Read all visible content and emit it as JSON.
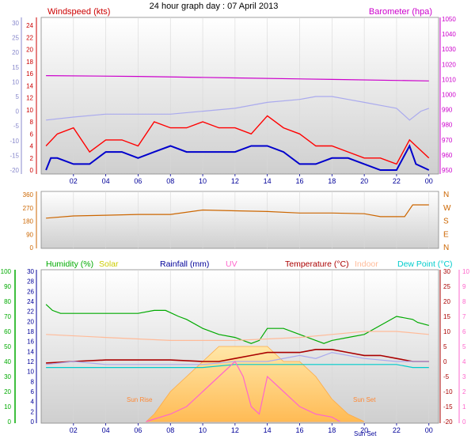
{
  "chart_data": [
    {
      "type": "line",
      "title": "24 hour graph day : 07 April 2013",
      "left_label": "Windspeed (kts)",
      "right_label": "Barometer (hpa)",
      "xticks": [
        "02",
        "04",
        "06",
        "08",
        "10",
        "12",
        "14",
        "16",
        "18",
        "20",
        "22",
        "00"
      ],
      "y_outer_ticks": [
        "30",
        "25",
        "20",
        "15",
        "10",
        "5",
        "0",
        "-5",
        "-10",
        "-15",
        "-20"
      ],
      "y_wind_ticks": [
        "24",
        "22",
        "20",
        "18",
        "16",
        "14",
        "12",
        "10",
        "8",
        "6",
        "4",
        "2",
        "0"
      ],
      "y_baro_ticks": [
        "1050",
        "1040",
        "1030",
        "1020",
        "1010",
        "1000",
        "990",
        "980",
        "970",
        "960",
        "950"
      ],
      "ylim_wind": [
        0,
        25
      ],
      "ylim_baro": [
        948,
        1052
      ],
      "ylim_outer": [
        -20,
        30
      ],
      "series": [
        {
          "name": "barometer",
          "axis": "baro",
          "color": "#cc00cc",
          "x": [
            0.3,
            6,
            12,
            18,
            24
          ],
          "y": [
            1012.5,
            1012,
            1011,
            1010,
            1009
          ]
        },
        {
          "name": "gust",
          "axis": "wind",
          "color": "#ff0000",
          "x": [
            0.3,
            1,
            2,
            3,
            4,
            5,
            6,
            7,
            8,
            9,
            10,
            11,
            12,
            13,
            14,
            15,
            16,
            17,
            18,
            19,
            20,
            21,
            22,
            22.8,
            23.2,
            24
          ],
          "y": [
            4,
            6,
            7,
            3,
            5,
            5,
            4,
            8,
            7,
            7,
            8,
            7,
            7,
            6,
            9,
            7,
            6,
            4,
            4,
            3,
            2,
            2,
            1,
            5,
            4,
            2
          ]
        },
        {
          "name": "wind",
          "axis": "wind",
          "color": "#0000cc",
          "x": [
            0.3,
            0.6,
            1,
            2,
            3,
            4,
            5,
            6,
            7,
            8,
            9,
            10,
            11,
            12,
            13,
            14,
            15,
            16,
            17,
            18,
            19,
            20,
            21,
            22,
            22.8,
            23.2,
            24
          ],
          "y": [
            0,
            2,
            2,
            1,
            1,
            3,
            3,
            2,
            3,
            4,
            3,
            3,
            3,
            3,
            4,
            4,
            3,
            1,
            1,
            2,
            2,
            1,
            0,
            0,
            4,
            1,
            0
          ],
          "xnote": "hours since 00:00"
        },
        {
          "name": "outer",
          "axis": "outer",
          "color": "#aaaaee",
          "x": [
            0.3,
            2,
            4,
            6,
            8,
            10,
            12,
            14,
            16,
            17,
            18,
            19,
            20,
            21,
            22,
            22.8,
            23.5,
            24
          ],
          "y": [
            -3,
            -2,
            -1,
            -1,
            -1,
            0,
            1,
            3,
            4,
            5,
            5,
            4,
            3,
            2,
            1,
            -3,
            0,
            1
          ]
        }
      ]
    },
    {
      "type": "line",
      "left_ticks": [
        "360",
        "270",
        "180",
        "90",
        "0"
      ],
      "right_ticks": [
        "N",
        "W",
        "S",
        "E",
        "N"
      ],
      "ylim": [
        0,
        360
      ],
      "series": [
        {
          "name": "direction",
          "color": "#cc6600",
          "x": [
            0.3,
            2,
            4,
            6,
            8,
            10,
            12,
            14,
            16,
            18,
            20,
            21,
            22,
            22.5,
            23,
            24
          ],
          "y": [
            200,
            215,
            220,
            225,
            225,
            255,
            250,
            245,
            235,
            235,
            230,
            210,
            210,
            210,
            290,
            290
          ]
        }
      ]
    },
    {
      "type": "line",
      "legend": [
        {
          "label": "Humidity (%)",
          "color": "#00aa00"
        },
        {
          "label": "Solar",
          "color": "#cccc00"
        },
        {
          "label": "Rainfall (mm)",
          "color": "#000099"
        },
        {
          "label": "UV",
          "color": "#ff66cc"
        },
        {
          "label": "Temperature (°C)",
          "color": "#aa0000"
        },
        {
          "label": "Indoor",
          "color": "#ffbb99"
        },
        {
          "label": "Dew Point (°C)",
          "color": "#00cccc"
        }
      ],
      "y_hum_ticks": [
        "100",
        "90",
        "80",
        "70",
        "60",
        "50",
        "40",
        "30",
        "20",
        "10",
        "0"
      ],
      "y_rain_ticks": [
        "30",
        "28",
        "26",
        "24",
        "22",
        "20",
        "18",
        "16",
        "14",
        "12",
        "10",
        "8",
        "6",
        "4",
        "2",
        "0"
      ],
      "y_temp_ticks": [
        "30",
        "25",
        "20",
        "15",
        "10",
        "5",
        "0",
        "-5",
        "-10",
        "-15",
        "-20"
      ],
      "y_uv_ticks": [
        "10",
        "9",
        "8",
        "7",
        "6",
        "5",
        "4",
        "3",
        "2",
        "1",
        "0"
      ],
      "annotations": {
        "sunrise": "Sun Rise",
        "sunset": "Sun Set",
        "sun_set_tick": "Sun Set"
      },
      "ylim_temp": [
        -20,
        30
      ],
      "series": [
        {
          "name": "humidity",
          "axis": "temp",
          "color": "#00aa00",
          "x": [
            0.3,
            0.7,
            1.2,
            2,
            4,
            6,
            7,
            7.7,
            8.5,
            9,
            10,
            11,
            12,
            12.5,
            13,
            13.5,
            14,
            15,
            16,
            17,
            17.5,
            18,
            19,
            20,
            21,
            22,
            23,
            23.3,
            24
          ],
          "y": [
            19,
            17,
            16,
            16,
            16,
            16,
            17,
            17,
            15,
            14,
            11,
            9,
            8,
            7,
            6,
            7,
            11,
            11,
            9,
            7,
            6,
            7,
            8,
            9,
            12,
            15,
            14,
            13,
            12
          ]
        },
        {
          "name": "indoor",
          "axis": "temp",
          "color": "#ffbb99",
          "x": [
            0.3,
            4,
            8,
            12,
            16,
            18,
            20,
            22,
            24
          ],
          "y": [
            9,
            8,
            7,
            7,
            8,
            9,
            10,
            10,
            9
          ]
        },
        {
          "name": "temperature",
          "axis": "temp",
          "color": "#aa0000",
          "x": [
            0.3,
            2,
            4,
            6,
            8,
            10,
            11,
            12,
            13,
            14,
            15,
            16,
            17,
            18,
            19,
            20,
            21,
            22,
            23,
            24
          ],
          "y": [
            -0.5,
            0,
            0.5,
            0.5,
            0.5,
            0,
            0,
            1,
            2,
            3,
            3,
            3,
            4,
            4,
            3,
            2,
            2,
            1,
            0,
            0
          ]
        },
        {
          "name": "dew_point",
          "axis": "temp",
          "color": "#00cccc",
          "x": [
            0.3,
            2,
            4,
            6,
            8,
            10,
            12,
            14,
            16,
            18,
            20,
            22,
            23,
            24
          ],
          "y": [
            -2,
            -2,
            -2,
            -2,
            -2,
            -2,
            -1,
            -1,
            -1,
            -1,
            -1,
            -1,
            -2,
            -2
          ]
        },
        {
          "name": "outer_dew",
          "axis": "temp",
          "color": "#aaaaee",
          "x": [
            0.3,
            2,
            4,
            6,
            8,
            10,
            12,
            14,
            16,
            17,
            18,
            20,
            22,
            23,
            24
          ],
          "y": [
            -1,
            0,
            -1,
            -1,
            -1,
            -1,
            0,
            0,
            2,
            1,
            3,
            1,
            0,
            0,
            0
          ]
        },
        {
          "name": "uv",
          "axis": "uv",
          "color": "#ff66cc",
          "x": [
            6.5,
            8,
            9,
            10,
            11,
            12,
            12.5,
            13,
            13.5,
            14,
            15,
            16,
            17,
            18,
            18.5
          ],
          "y": [
            0,
            0.5,
            1,
            2,
            3,
            4,
            3,
            1,
            0.5,
            3,
            2,
            1,
            0.5,
            0.3,
            0
          ]
        },
        {
          "name": "solar",
          "axis": "uv",
          "color": "#ffbb55",
          "fill": true,
          "x": [
            6.5,
            7,
            8,
            9,
            10,
            11,
            12,
            13,
            14,
            15,
            16,
            17,
            18,
            19,
            20
          ],
          "y": [
            0,
            0.5,
            2,
            3,
            4,
            5,
            5,
            5,
            5,
            4,
            4,
            3,
            1.5,
            0.5,
            0
          ]
        }
      ]
    }
  ]
}
